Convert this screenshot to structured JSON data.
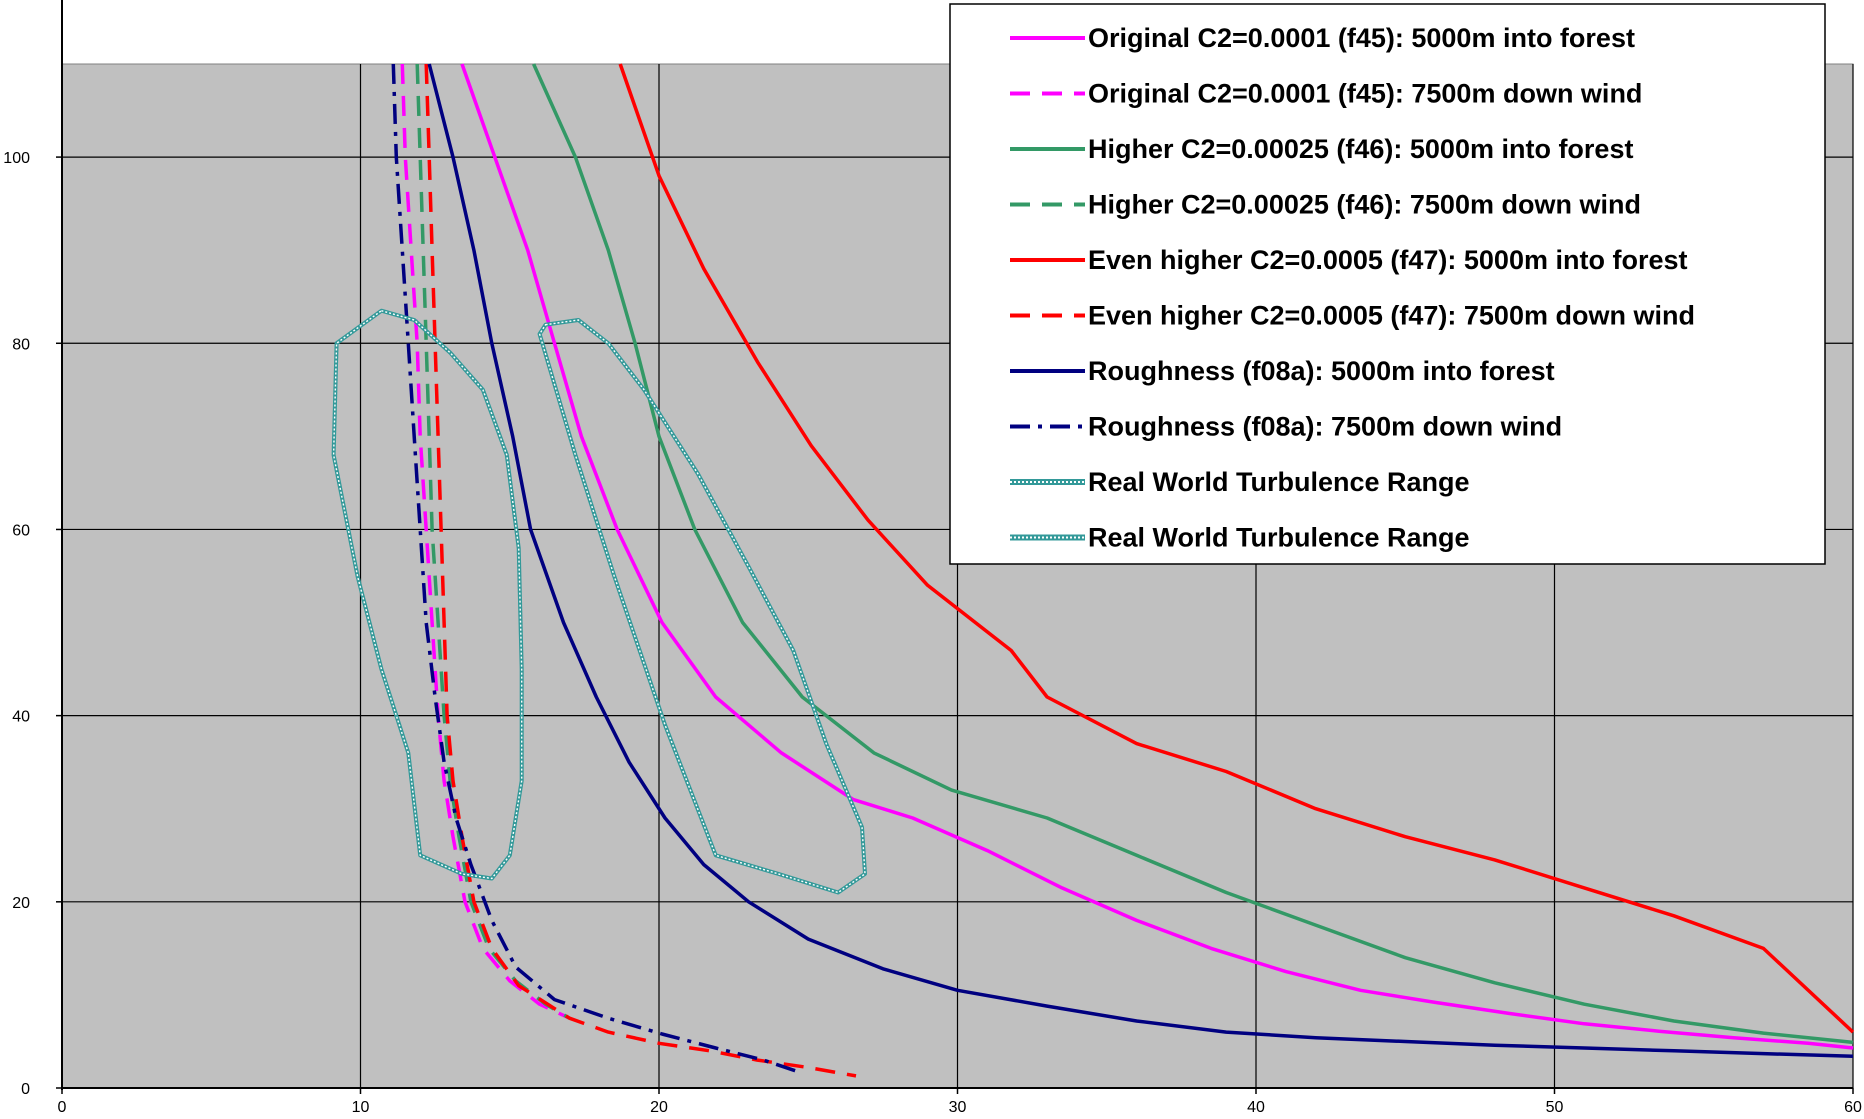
{
  "chart_data": {
    "type": "line",
    "title": "",
    "xlabel": "",
    "ylabel": "",
    "xlim": [
      0,
      60
    ],
    "ylim": [
      0,
      110
    ],
    "x_ticks": [
      0,
      10,
      20,
      30,
      40,
      50,
      60
    ],
    "y_ticks": [
      0,
      20,
      40,
      60,
      80,
      100
    ],
    "grid": true,
    "plot_background": "#c0c0c0",
    "legend_position": "top-right",
    "series": [
      {
        "name": "Original C2=0.0001 (f45): 5000m into forest",
        "color": "#ff00ff",
        "style": "solid",
        "points": [
          [
            13.4,
            110
          ],
          [
            14.5,
            100
          ],
          [
            15.6,
            90
          ],
          [
            16.5,
            80
          ],
          [
            17.4,
            70
          ],
          [
            18.6,
            60
          ],
          [
            20.1,
            50
          ],
          [
            21.9,
            42
          ],
          [
            24.1,
            36
          ],
          [
            26.5,
            31
          ],
          [
            28.5,
            29
          ],
          [
            31,
            25.5
          ],
          [
            33.5,
            21.5
          ],
          [
            36,
            18
          ],
          [
            38.5,
            15
          ],
          [
            41,
            12.5
          ],
          [
            43.5,
            10.5
          ],
          [
            46,
            9.2
          ],
          [
            48.5,
            8
          ],
          [
            51,
            6.9
          ],
          [
            53.5,
            6.1
          ],
          [
            56,
            5.4
          ],
          [
            58.5,
            4.8
          ],
          [
            60,
            4.3
          ]
        ]
      },
      {
        "name": "Original C2=0.0001 (f45): 7500m down wind",
        "color": "#ff00ff",
        "style": "dashed",
        "points": [
          [
            11.4,
            110
          ],
          [
            11.5,
            100
          ],
          [
            11.7,
            90
          ],
          [
            11.9,
            80
          ],
          [
            12.0,
            70
          ],
          [
            12.2,
            60
          ],
          [
            12.4,
            50
          ],
          [
            12.6,
            40
          ],
          [
            12.8,
            33
          ],
          [
            13.1,
            27
          ],
          [
            13.5,
            20
          ],
          [
            14.1,
            15
          ],
          [
            15,
            11.5
          ],
          [
            16,
            9
          ],
          [
            17,
            7.5
          ]
        ]
      },
      {
        "name": "Higher C2=0.00025 (f46): 5000m into forest",
        "color": "#339966",
        "style": "solid",
        "points": [
          [
            15.8,
            110
          ],
          [
            17.2,
            100
          ],
          [
            18.3,
            90
          ],
          [
            19.2,
            80
          ],
          [
            20,
            70
          ],
          [
            21.2,
            60
          ],
          [
            22.8,
            50
          ],
          [
            24.8,
            42
          ],
          [
            27.2,
            36
          ],
          [
            29.8,
            32
          ],
          [
            33,
            29
          ],
          [
            36,
            25
          ],
          [
            39,
            21
          ],
          [
            42,
            17.5
          ],
          [
            45,
            14
          ],
          [
            48,
            11.3
          ],
          [
            51,
            9
          ],
          [
            54,
            7.2
          ],
          [
            57,
            5.9
          ],
          [
            60,
            4.9
          ]
        ]
      },
      {
        "name": "Higher C2=0.00025 (f46): 7500m down wind",
        "color": "#339966",
        "style": "dashed",
        "points": [
          [
            11.9,
            110
          ],
          [
            12.0,
            100
          ],
          [
            12.1,
            90
          ],
          [
            12.2,
            80
          ],
          [
            12.3,
            70
          ],
          [
            12.4,
            60
          ],
          [
            12.6,
            50
          ],
          [
            12.8,
            40
          ],
          [
            13.0,
            33
          ],
          [
            13.3,
            27
          ],
          [
            13.7,
            20
          ],
          [
            14.3,
            15
          ],
          [
            15.2,
            11.5
          ],
          [
            16.2,
            9
          ],
          [
            17,
            7.5
          ]
        ]
      },
      {
        "name": "Even higher C2=0.0005 (f47): 5000m into forest",
        "color": "#ff0000",
        "style": "solid",
        "points": [
          [
            18.7,
            110
          ],
          [
            20,
            98
          ],
          [
            21.5,
            88
          ],
          [
            23.3,
            78
          ],
          [
            25.1,
            69
          ],
          [
            27,
            61
          ],
          [
            29,
            54
          ],
          [
            31.8,
            47
          ],
          [
            33,
            42
          ],
          [
            36,
            37
          ],
          [
            39,
            34
          ],
          [
            42,
            30
          ],
          [
            45,
            27
          ],
          [
            48,
            24.5
          ],
          [
            51,
            21.5
          ],
          [
            54,
            18.5
          ],
          [
            57,
            15
          ],
          [
            60,
            6
          ]
        ]
      },
      {
        "name": "Even higher C2=0.0005 (f47): 7500m down wind",
        "color": "#ff0000",
        "style": "dashed",
        "points": [
          [
            12.2,
            110
          ],
          [
            12.3,
            100
          ],
          [
            12.4,
            90
          ],
          [
            12.5,
            80
          ],
          [
            12.6,
            70
          ],
          [
            12.7,
            60
          ],
          [
            12.8,
            50
          ],
          [
            12.9,
            40
          ],
          [
            13.1,
            33
          ],
          [
            13.4,
            27
          ],
          [
            13.8,
            20
          ],
          [
            14.4,
            15
          ],
          [
            15.3,
            11
          ],
          [
            17,
            7.5
          ],
          [
            18.3,
            6
          ],
          [
            20,
            4.8
          ],
          [
            21.7,
            4
          ],
          [
            23.3,
            3
          ],
          [
            25,
            2.2
          ],
          [
            26.6,
            1.3
          ]
        ]
      },
      {
        "name": "Roughness (f08a): 5000m into forest",
        "color": "#000080",
        "style": "solid",
        "points": [
          [
            12.3,
            110
          ],
          [
            13.1,
            100
          ],
          [
            13.8,
            90
          ],
          [
            14.4,
            80
          ],
          [
            15.1,
            70
          ],
          [
            15.7,
            60
          ],
          [
            16.8,
            50
          ],
          [
            17.9,
            42
          ],
          [
            19,
            35
          ],
          [
            20.2,
            29
          ],
          [
            21.5,
            24
          ],
          [
            23,
            20
          ],
          [
            25,
            16
          ],
          [
            27.5,
            12.8
          ],
          [
            30,
            10.5
          ],
          [
            33,
            8.8
          ],
          [
            36,
            7.2
          ],
          [
            39,
            6
          ],
          [
            42,
            5.4
          ],
          [
            45,
            5
          ],
          [
            48,
            4.6
          ],
          [
            51,
            4.3
          ],
          [
            54,
            4
          ],
          [
            57,
            3.7
          ],
          [
            60,
            3.4
          ]
        ]
      },
      {
        "name": "Roughness (f08a): 7500m down wind",
        "color": "#000080",
        "style": "dashdot",
        "points": [
          [
            11.1,
            110
          ],
          [
            11.2,
            100
          ],
          [
            11.4,
            90
          ],
          [
            11.6,
            80
          ],
          [
            11.8,
            70
          ],
          [
            12.0,
            60
          ],
          [
            12.2,
            50
          ],
          [
            12.5,
            42
          ],
          [
            12.8,
            35
          ],
          [
            13.2,
            29
          ],
          [
            13.7,
            24
          ],
          [
            14.4,
            18
          ],
          [
            15.2,
            13
          ],
          [
            16.5,
            9.5
          ],
          [
            18.3,
            7.5
          ],
          [
            20.1,
            5.8
          ],
          [
            21.9,
            4.3
          ],
          [
            23.5,
            3
          ],
          [
            24.8,
            1.6
          ]
        ]
      },
      {
        "name": "Real World Turbulence Range",
        "color": "#339999",
        "style": "dotted",
        "closed": true,
        "points": [
          [
            10.7,
            83.5
          ],
          [
            11.8,
            82.5
          ],
          [
            13,
            79
          ],
          [
            14.1,
            75
          ],
          [
            14.9,
            68
          ],
          [
            15.3,
            58
          ],
          [
            15.4,
            45
          ],
          [
            15.4,
            33
          ],
          [
            15.0,
            25
          ],
          [
            14.4,
            22.5
          ],
          [
            13.4,
            23
          ],
          [
            12,
            25
          ],
          [
            11.6,
            36
          ],
          [
            10.7,
            45
          ],
          [
            9.9,
            55
          ],
          [
            9.1,
            68
          ],
          [
            9.2,
            80
          ]
        ]
      },
      {
        "name": "Real World Turbulence Range",
        "color": "#339999",
        "style": "dotted",
        "closed": true,
        "points": [
          [
            16.2,
            82
          ],
          [
            17.3,
            82.5
          ],
          [
            18.3,
            80
          ],
          [
            19.5,
            75
          ],
          [
            21.3,
            66
          ],
          [
            23,
            56
          ],
          [
            24.5,
            47
          ],
          [
            25.6,
            37
          ],
          [
            26.8,
            28
          ],
          [
            26.9,
            23
          ],
          [
            26,
            21
          ],
          [
            24,
            23
          ],
          [
            21.9,
            25
          ],
          [
            20.2,
            39
          ],
          [
            18.5,
            55
          ],
          [
            17.2,
            68
          ],
          [
            16,
            81
          ]
        ]
      }
    ]
  }
}
